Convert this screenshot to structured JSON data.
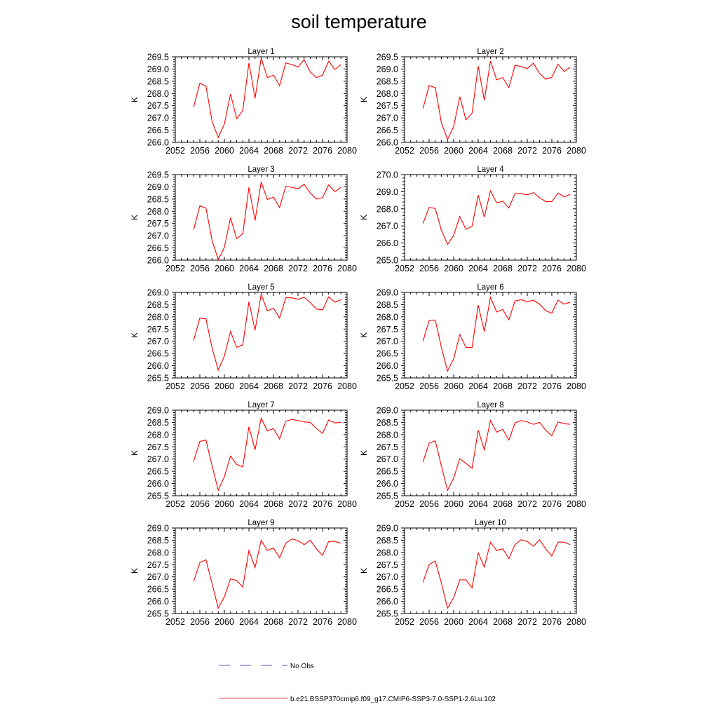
{
  "figure": {
    "title": "soil temperature",
    "legend": [
      {
        "label": "No Obs",
        "color": "#5050c8",
        "dash": true
      },
      {
        "label": "b.e21.BSSP370cmip6.f09_g17.CMIP6-SSP3-7.0-SSP1-2.6Lu.102",
        "color": "#ff4040",
        "dash": false
      }
    ]
  },
  "chart_data": [
    {
      "type": "line",
      "title": "Layer 1",
      "ylabel": "K",
      "xlim": [
        2052,
        2080
      ],
      "ylim": [
        266.0,
        269.5
      ],
      "xticks": [
        "2052",
        "2056",
        "2060",
        "2064",
        "2068",
        "2072",
        "2076",
        "2080"
      ],
      "yticks": [
        "266.0",
        "266.5",
        "267.0",
        "267.5",
        "268.0",
        "268.5",
        "269.0",
        "269.5"
      ],
      "series": [
        {
          "color": "#ff0000",
          "x": [
            2055,
            2056,
            2057,
            2058,
            2059,
            2060,
            2061,
            2062,
            2063,
            2064,
            2065,
            2066,
            2067,
            2068,
            2069,
            2070,
            2071,
            2072,
            2073,
            2074,
            2075,
            2076,
            2077,
            2078,
            2079
          ],
          "values": [
            267.45,
            268.42,
            268.3,
            266.85,
            266.2,
            266.75,
            267.98,
            266.97,
            267.3,
            269.25,
            267.8,
            269.45,
            268.65,
            268.75,
            268.32,
            269.25,
            269.18,
            269.08,
            269.38,
            268.88,
            268.65,
            268.75,
            269.32,
            268.98,
            269.18
          ]
        }
      ]
    },
    {
      "type": "line",
      "title": "Layer 2",
      "ylabel": "K",
      "xlim": [
        2052,
        2080
      ],
      "ylim": [
        266.0,
        269.5
      ],
      "xticks": [
        "2052",
        "2056",
        "2060",
        "2064",
        "2068",
        "2072",
        "2076",
        "2080"
      ],
      "yticks": [
        "266.0",
        "266.5",
        "267.0",
        "267.5",
        "268.0",
        "268.5",
        "269.0",
        "269.5"
      ],
      "series": [
        {
          "color": "#ff0000",
          "x": [
            2055,
            2056,
            2057,
            2058,
            2059,
            2060,
            2061,
            2062,
            2063,
            2064,
            2065,
            2066,
            2067,
            2068,
            2069,
            2070,
            2071,
            2072,
            2073,
            2074,
            2075,
            2076,
            2077,
            2078,
            2079
          ],
          "values": [
            267.38,
            268.32,
            268.24,
            266.8,
            266.12,
            266.64,
            267.87,
            266.92,
            267.19,
            269.12,
            267.72,
            269.33,
            268.56,
            268.65,
            268.24,
            269.15,
            269.1,
            269.02,
            269.24,
            268.82,
            268.58,
            268.66,
            269.2,
            268.9,
            269.08
          ]
        }
      ]
    },
    {
      "type": "line",
      "title": "Layer 3",
      "ylabel": "K",
      "xlim": [
        2052,
        2080
      ],
      "ylim": [
        266.0,
        269.5
      ],
      "xticks": [
        "2052",
        "2056",
        "2060",
        "2064",
        "2068",
        "2072",
        "2076",
        "2080"
      ],
      "yticks": [
        "266.0",
        "266.5",
        "267.0",
        "267.5",
        "268.0",
        "268.5",
        "269.0",
        "269.5"
      ],
      "series": [
        {
          "color": "#ff0000",
          "x": [
            2055,
            2056,
            2057,
            2058,
            2059,
            2060,
            2061,
            2062,
            2063,
            2064,
            2065,
            2066,
            2067,
            2068,
            2069,
            2070,
            2071,
            2072,
            2073,
            2074,
            2075,
            2076,
            2077,
            2078,
            2079
          ],
          "values": [
            267.25,
            268.22,
            268.13,
            266.8,
            266.02,
            266.52,
            267.73,
            266.88,
            267.08,
            268.98,
            267.62,
            269.2,
            268.48,
            268.58,
            268.15,
            269.02,
            268.98,
            268.92,
            269.1,
            268.75,
            268.5,
            268.56,
            269.08,
            268.8,
            268.98
          ]
        }
      ]
    },
    {
      "type": "line",
      "title": "Layer 4",
      "ylabel": "K",
      "xlim": [
        2052,
        2080
      ],
      "ylim": [
        265.0,
        270.0
      ],
      "xticks": [
        "2052",
        "2056",
        "2060",
        "2064",
        "2068",
        "2072",
        "2076",
        "2080"
      ],
      "yticks": [
        "265.0",
        "266.0",
        "267.0",
        "268.0",
        "269.0",
        "270.0"
      ],
      "series": [
        {
          "color": "#ff0000",
          "x": [
            2055,
            2056,
            2057,
            2058,
            2059,
            2060,
            2061,
            2062,
            2063,
            2064,
            2065,
            2066,
            2067,
            2068,
            2069,
            2070,
            2071,
            2072,
            2073,
            2074,
            2075,
            2076,
            2077,
            2078,
            2079
          ],
          "values": [
            267.15,
            268.08,
            268.02,
            266.75,
            265.92,
            266.45,
            267.55,
            266.8,
            266.98,
            268.8,
            267.52,
            269.05,
            268.35,
            268.45,
            268.05,
            268.88,
            268.88,
            268.82,
            268.95,
            268.65,
            268.42,
            268.42,
            268.92,
            268.7,
            268.85
          ]
        }
      ]
    },
    {
      "type": "line",
      "title": "Layer 5",
      "ylabel": "K",
      "xlim": [
        2052,
        2080
      ],
      "ylim": [
        265.5,
        269.0
      ],
      "xticks": [
        "2052",
        "2056",
        "2060",
        "2064",
        "2068",
        "2072",
        "2076",
        "2080"
      ],
      "yticks": [
        "265.5",
        "266.0",
        "266.5",
        "267.0",
        "267.5",
        "268.0",
        "268.5",
        "269.0"
      ],
      "series": [
        {
          "color": "#ff0000",
          "x": [
            2055,
            2056,
            2057,
            2058,
            2059,
            2060,
            2061,
            2062,
            2063,
            2064,
            2065,
            2066,
            2067,
            2068,
            2069,
            2070,
            2071,
            2072,
            2073,
            2074,
            2075,
            2076,
            2077,
            2078,
            2079
          ],
          "values": [
            267.05,
            267.95,
            267.92,
            266.72,
            265.82,
            266.4,
            267.4,
            266.75,
            266.85,
            268.62,
            267.45,
            268.92,
            268.25,
            268.35,
            267.95,
            268.78,
            268.78,
            268.72,
            268.8,
            268.58,
            268.32,
            268.28,
            268.82,
            268.6,
            268.7
          ]
        }
      ]
    },
    {
      "type": "line",
      "title": "Layer 6",
      "ylabel": "K",
      "xlim": [
        2052,
        2080
      ],
      "ylim": [
        265.5,
        269.0
      ],
      "xticks": [
        "2052",
        "2056",
        "2060",
        "2064",
        "2068",
        "2072",
        "2076",
        "2080"
      ],
      "yticks": [
        "265.5",
        "266.0",
        "266.5",
        "267.0",
        "267.5",
        "268.0",
        "268.5",
        "269.0"
      ],
      "series": [
        {
          "color": "#ff0000",
          "x": [
            2055,
            2056,
            2057,
            2058,
            2059,
            2060,
            2061,
            2062,
            2063,
            2064,
            2065,
            2066,
            2067,
            2068,
            2069,
            2070,
            2071,
            2072,
            2073,
            2074,
            2075,
            2076,
            2077,
            2078,
            2079
          ],
          "values": [
            267.0,
            267.85,
            267.87,
            266.75,
            265.78,
            266.28,
            267.28,
            266.75,
            266.75,
            268.48,
            267.4,
            268.8,
            268.2,
            268.3,
            267.88,
            268.65,
            268.7,
            268.62,
            268.68,
            268.52,
            268.25,
            268.15,
            268.68,
            268.52,
            268.6
          ]
        }
      ]
    },
    {
      "type": "line",
      "title": "Layer 7",
      "ylabel": "K",
      "xlim": [
        2052,
        2080
      ],
      "ylim": [
        265.5,
        269.0
      ],
      "xticks": [
        "2052",
        "2056",
        "2060",
        "2064",
        "2068",
        "2072",
        "2076",
        "2080"
      ],
      "yticks": [
        "265.5",
        "266.0",
        "266.5",
        "267.0",
        "267.5",
        "268.0",
        "268.5",
        "269.0"
      ],
      "series": [
        {
          "color": "#ff0000",
          "x": [
            2055,
            2056,
            2057,
            2058,
            2059,
            2060,
            2061,
            2062,
            2063,
            2064,
            2065,
            2066,
            2067,
            2068,
            2069,
            2070,
            2071,
            2072,
            2073,
            2074,
            2075,
            2076,
            2077,
            2078,
            2079
          ],
          "values": [
            266.92,
            267.72,
            267.78,
            266.72,
            265.72,
            266.28,
            267.12,
            266.78,
            266.68,
            268.32,
            267.38,
            268.68,
            268.15,
            268.25,
            267.82,
            268.55,
            268.62,
            268.58,
            268.52,
            268.5,
            268.25,
            268.05,
            268.6,
            268.48,
            268.5
          ]
        }
      ]
    },
    {
      "type": "line",
      "title": "Layer 8",
      "ylabel": "K",
      "xlim": [
        2052,
        2080
      ],
      "ylim": [
        265.5,
        269.0
      ],
      "xticks": [
        "2052",
        "2056",
        "2060",
        "2064",
        "2068",
        "2072",
        "2076",
        "2080"
      ],
      "yticks": [
        "265.5",
        "266.0",
        "266.5",
        "267.0",
        "267.5",
        "268.0",
        "268.5",
        "269.0"
      ],
      "series": [
        {
          "color": "#ff0000",
          "x": [
            2055,
            2056,
            2057,
            2058,
            2059,
            2060,
            2061,
            2062,
            2063,
            2064,
            2065,
            2066,
            2067,
            2068,
            2069,
            2070,
            2071,
            2072,
            2073,
            2074,
            2075,
            2076,
            2077,
            2078,
            2079
          ],
          "values": [
            266.88,
            267.65,
            267.75,
            266.72,
            265.72,
            266.22,
            267.02,
            266.82,
            266.62,
            268.18,
            267.38,
            268.58,
            268.1,
            268.22,
            267.78,
            268.48,
            268.58,
            268.52,
            268.42,
            268.5,
            268.18,
            267.95,
            268.52,
            268.45,
            268.42
          ]
        }
      ]
    },
    {
      "type": "line",
      "title": "Layer 9",
      "ylabel": "K",
      "xlim": [
        2052,
        2080
      ],
      "ylim": [
        265.5,
        269.0
      ],
      "xticks": [
        "2052",
        "2056",
        "2060",
        "2064",
        "2068",
        "2072",
        "2076",
        "2080"
      ],
      "yticks": [
        "265.5",
        "266.0",
        "266.5",
        "267.0",
        "267.5",
        "268.0",
        "268.5",
        "269.0"
      ],
      "series": [
        {
          "color": "#ff0000",
          "x": [
            2055,
            2056,
            2057,
            2058,
            2059,
            2060,
            2061,
            2062,
            2063,
            2064,
            2065,
            2066,
            2067,
            2068,
            2069,
            2070,
            2071,
            2072,
            2073,
            2074,
            2075,
            2076,
            2077,
            2078,
            2079
          ],
          "values": [
            266.82,
            267.58,
            267.7,
            266.72,
            265.72,
            266.18,
            266.92,
            266.85,
            266.58,
            268.08,
            267.38,
            268.5,
            268.08,
            268.18,
            267.78,
            268.38,
            268.55,
            268.48,
            268.32,
            268.5,
            268.15,
            267.88,
            268.45,
            268.45,
            268.38
          ]
        }
      ]
    },
    {
      "type": "line",
      "title": "Layer 10",
      "ylabel": "K",
      "xlim": [
        2052,
        2080
      ],
      "ylim": [
        265.5,
        269.0
      ],
      "xticks": [
        "2052",
        "2056",
        "2060",
        "2064",
        "2068",
        "2072",
        "2076",
        "2080"
      ],
      "yticks": [
        "265.5",
        "266.0",
        "266.5",
        "267.0",
        "267.5",
        "268.0",
        "268.5",
        "269.0"
      ],
      "series": [
        {
          "color": "#ff0000",
          "x": [
            2055,
            2056,
            2057,
            2058,
            2059,
            2060,
            2061,
            2062,
            2063,
            2064,
            2065,
            2066,
            2067,
            2068,
            2069,
            2070,
            2071,
            2072,
            2073,
            2074,
            2075,
            2076,
            2077,
            2078,
            2079
          ],
          "values": [
            266.78,
            267.5,
            267.65,
            266.75,
            265.72,
            266.15,
            266.88,
            266.88,
            266.55,
            267.98,
            267.4,
            268.42,
            268.08,
            268.15,
            267.75,
            268.32,
            268.52,
            268.45,
            268.25,
            268.52,
            268.15,
            267.85,
            268.42,
            268.42,
            268.32
          ]
        }
      ]
    }
  ]
}
